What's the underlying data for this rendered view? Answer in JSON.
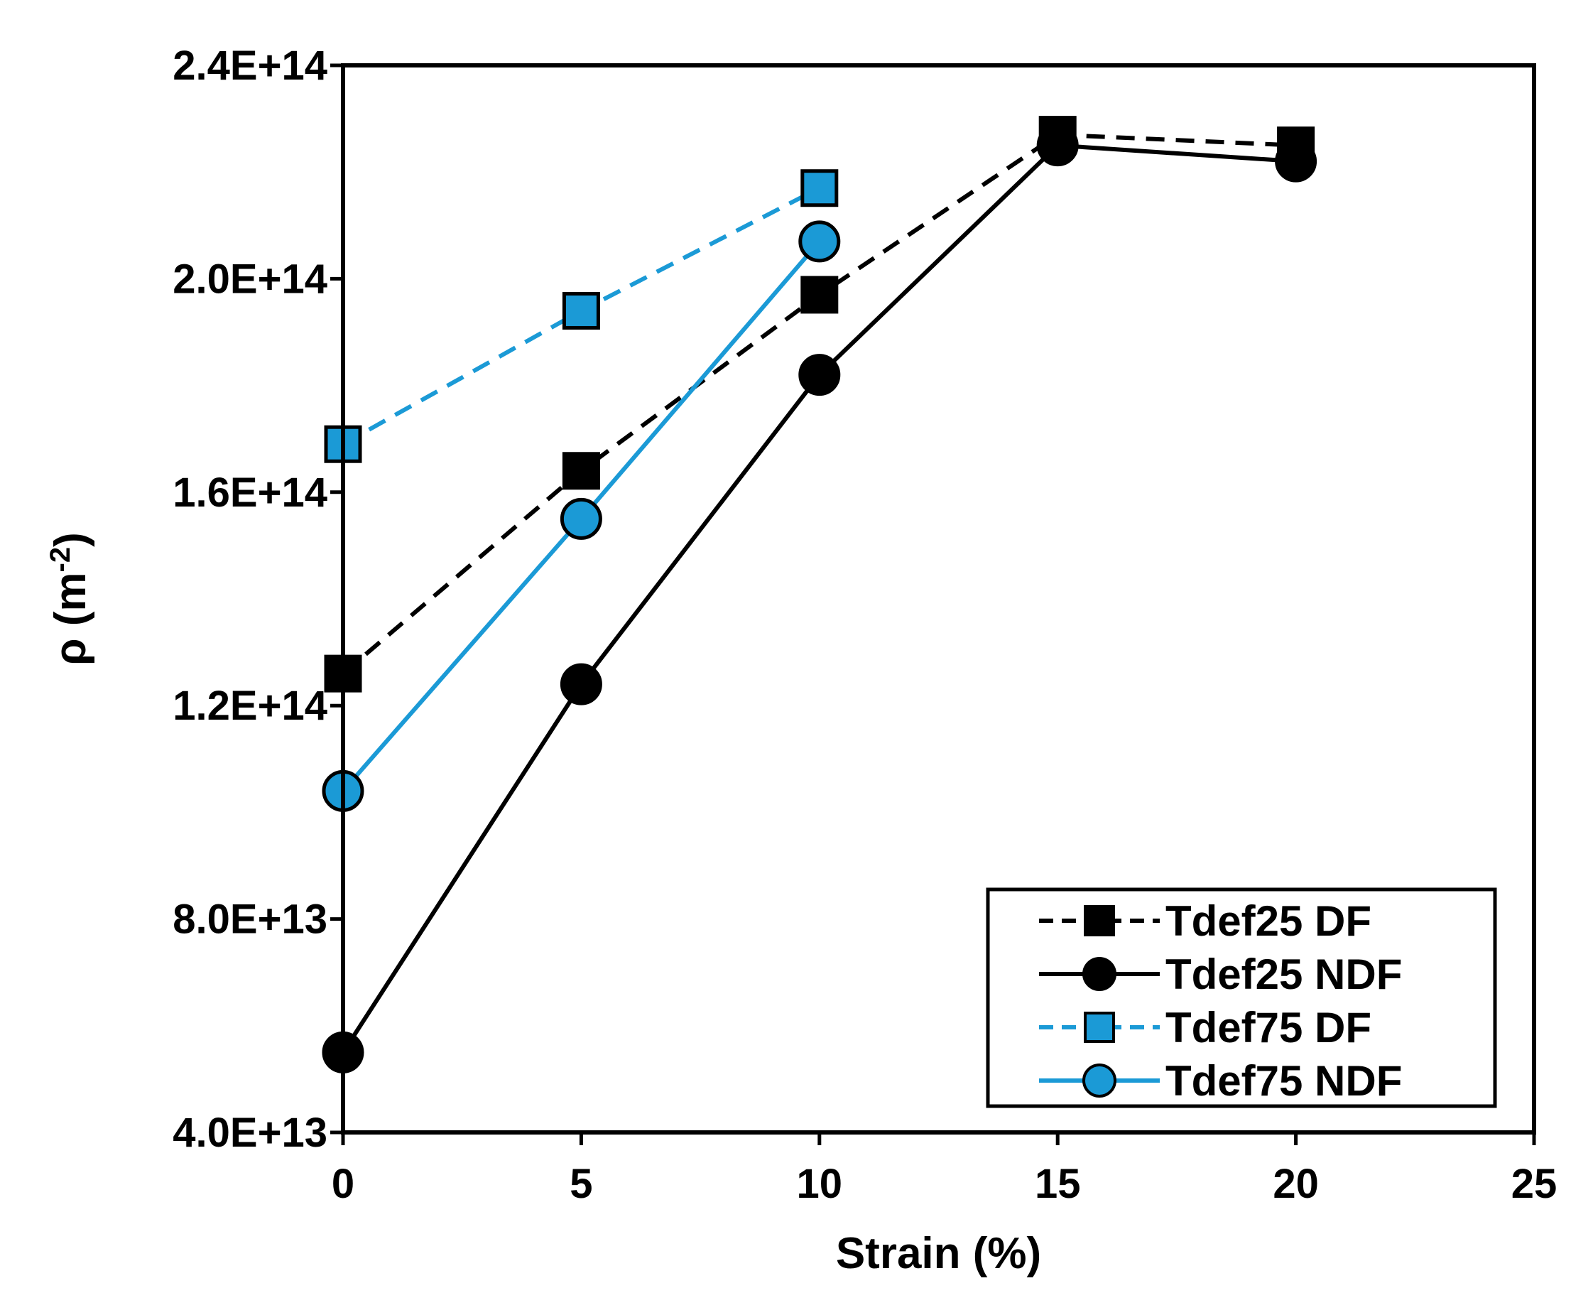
{
  "chart_data": {
    "type": "line",
    "title": "",
    "xlabel": "Strain (%)",
    "ylabel_main": "ρ (m",
    "ylabel_sup": "-2",
    "ylabel_close": ")",
    "xlim": [
      0,
      25
    ],
    "ylim": [
      40000000000000.0,
      240000000000000.0
    ],
    "xticks": [
      0,
      5,
      10,
      15,
      20,
      25
    ],
    "xtick_labels": [
      "0",
      "5",
      "10",
      "15",
      "20",
      "25"
    ],
    "yticks": [
      40000000000000.0,
      80000000000000.0,
      120000000000000.0,
      160000000000000.0,
      200000000000000.0,
      240000000000000.0
    ],
    "ytick_labels": [
      "4.0E+13",
      "8.0E+13",
      "1.2E+14",
      "1.6E+14",
      "2.0E+14",
      "2.4E+14"
    ],
    "grid": false,
    "legend_position": "bottom-right",
    "series": [
      {
        "name": "Tdef25 DF",
        "x": [
          0,
          5,
          10,
          15,
          20
        ],
        "y": [
          126000000000000.0,
          164000000000000.0,
          197000000000000.0,
          227000000000000.0,
          225000000000000.0
        ],
        "color": "#000000",
        "line_style": "dashed",
        "marker": "square"
      },
      {
        "name": "Tdef25 NDF",
        "x": [
          0,
          5,
          10,
          15,
          20
        ],
        "y": [
          55000000000000.0,
          124000000000000.0,
          182000000000000.0,
          225000000000000.0,
          222000000000000.0
        ],
        "color": "#000000",
        "line_style": "solid",
        "marker": "circle"
      },
      {
        "name": "Tdef75 DF",
        "x": [
          0,
          5,
          10
        ],
        "y": [
          169000000000000.0,
          194000000000000.0,
          217000000000000.0
        ],
        "color": "#1b9ad6",
        "line_style": "dashed",
        "marker": "square"
      },
      {
        "name": "Tdef75 NDF",
        "x": [
          0,
          5,
          10
        ],
        "y": [
          104000000000000.0,
          155000000000000.0,
          207000000000000.0
        ],
        "color": "#1b9ad6",
        "line_style": "solid",
        "marker": "circle"
      }
    ]
  }
}
